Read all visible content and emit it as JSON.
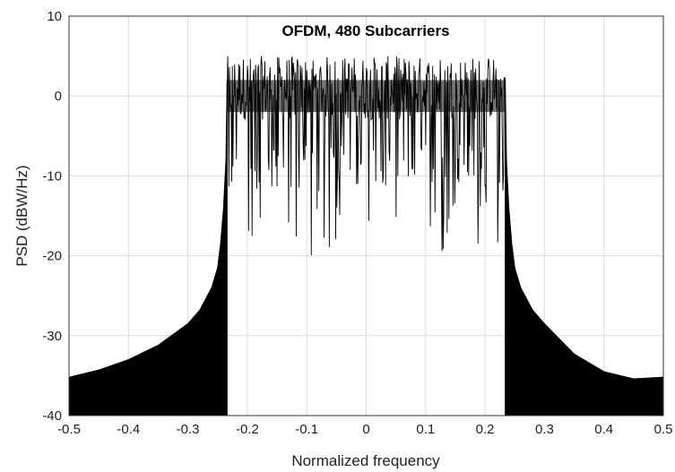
{
  "chart_data": {
    "type": "line",
    "title": "OFDM, 480 Subcarriers",
    "xlabel": "Normalized frequency",
    "ylabel": "PSD (dBW/Hz)",
    "xlim": [
      -0.5,
      0.5
    ],
    "ylim": [
      -40,
      10
    ],
    "xticks": [
      -0.5,
      -0.4,
      -0.3,
      -0.2,
      -0.1,
      0,
      0.1,
      0.2,
      0.3,
      0.4,
      0.5
    ],
    "yticks": [
      -40,
      -30,
      -20,
      -10,
      0,
      10
    ],
    "grid": true,
    "colors": {
      "line": "#000000",
      "grid": "#dcdcdc",
      "axes": "#333333"
    },
    "series": [
      {
        "x": [
          -0.5,
          -0.45,
          -0.4,
          -0.35,
          -0.3,
          -0.28,
          -0.26,
          -0.25,
          -0.245,
          -0.24,
          -0.236,
          -0.234
        ],
        "values": [
          -35.2,
          -34.3,
          -33.0,
          -31.2,
          -28.5,
          -26.8,
          -24.0,
          -21.5,
          -18.5,
          -14.0,
          -8.0,
          2.0
        ]
      },
      {
        "x": [
          0.234,
          0.236,
          0.24,
          0.245,
          0.25,
          0.26,
          0.28,
          0.3,
          0.35,
          0.4,
          0.45,
          0.5
        ],
        "values": [
          2.0,
          -8.0,
          -14.0,
          -18.5,
          -21.5,
          -24.0,
          -26.8,
          -28.5,
          -32.3,
          -34.5,
          -35.4,
          -35.2
        ]
      },
      {
        "x": [
          -0.234,
          0.234
        ],
        "values_envelope_upper": [
          4,
          4
        ],
        "values_envelope_lower": [
          -19,
          -19
        ]
      }
    ]
  }
}
